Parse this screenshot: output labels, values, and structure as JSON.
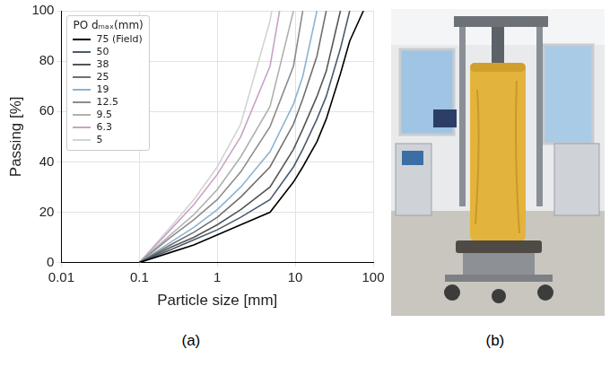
{
  "chart_data": {
    "type": "line",
    "x_label": "Particle size [mm]",
    "y_label": "Passing [%]",
    "legend_title": "PO dₘₐₓ(mm)",
    "legend": "upper left",
    "log": "x",
    "grid": true,
    "xlim": [
      0.01,
      100
    ],
    "xticks": [
      0.01,
      0.1,
      1,
      10,
      100
    ],
    "ylim": [
      0,
      100
    ],
    "yticks": [
      0,
      20,
      40,
      60,
      80,
      100
    ],
    "series": [
      {
        "name": "75 (Field)",
        "color": "#000000",
        "x": [
          0.1,
          0.25,
          0.5,
          1,
          2,
          4.75,
          9.5,
          12.5,
          19,
          25,
          38,
          50,
          75
        ],
        "values": [
          0,
          4,
          7,
          11,
          15,
          20,
          32,
          38,
          48,
          57,
          75,
          88,
          100
        ]
      },
      {
        "name": "50",
        "color": "#4a5a6e",
        "x": [
          0.1,
          0.25,
          0.5,
          1,
          2,
          4.75,
          9.5,
          12.5,
          19,
          25,
          38,
          50
        ],
        "values": [
          0,
          5,
          9,
          13,
          18,
          25,
          38,
          45,
          57,
          66,
          85,
          100
        ]
      },
      {
        "name": "38",
        "color": "#555555",
        "x": [
          0.1,
          0.25,
          0.5,
          1,
          2,
          4.75,
          9.5,
          12.5,
          19,
          25,
          38
        ],
        "values": [
          0,
          6,
          10,
          15,
          21,
          30,
          45,
          53,
          66,
          76,
          100
        ]
      },
      {
        "name": "25",
        "color": "#707070",
        "x": [
          0.1,
          0.25,
          0.5,
          1,
          2,
          4.75,
          9.5,
          12.5,
          19,
          25
        ],
        "values": [
          0,
          7,
          12,
          18,
          26,
          38,
          55,
          65,
          82,
          100
        ]
      },
      {
        "name": "19",
        "color": "#8fb3cf",
        "x": [
          0.1,
          0.25,
          0.5,
          1,
          2,
          4.75,
          9.5,
          12.5,
          19
        ],
        "values": [
          0,
          8,
          14,
          21,
          30,
          44,
          63,
          74,
          100
        ]
      },
      {
        "name": "12.5",
        "color": "#8c8c8c",
        "x": [
          0.1,
          0.25,
          0.5,
          1,
          2,
          4.75,
          9.5,
          12.5
        ],
        "values": [
          0,
          10,
          17,
          25,
          36,
          54,
          78,
          100
        ]
      },
      {
        "name": "9.5",
        "color": "#b0b0b0",
        "x": [
          0.1,
          0.25,
          0.5,
          1,
          2,
          4.75,
          9.5
        ],
        "values": [
          0,
          11,
          19,
          29,
          42,
          62,
          100
        ]
      },
      {
        "name": "6.3",
        "color": "#c8a2c8",
        "x": [
          0.1,
          0.25,
          0.5,
          1,
          2,
          4.75,
          6.3
        ],
        "values": [
          0,
          13,
          23,
          35,
          50,
          78,
          100
        ]
      },
      {
        "name": "5",
        "color": "#d3d3d3",
        "x": [
          0.1,
          0.25,
          0.5,
          1,
          2,
          4.75,
          5
        ],
        "values": [
          0,
          14,
          25,
          38,
          55,
          96,
          100
        ]
      }
    ]
  },
  "panel_labels": [
    "(a)",
    "(b)"
  ]
}
